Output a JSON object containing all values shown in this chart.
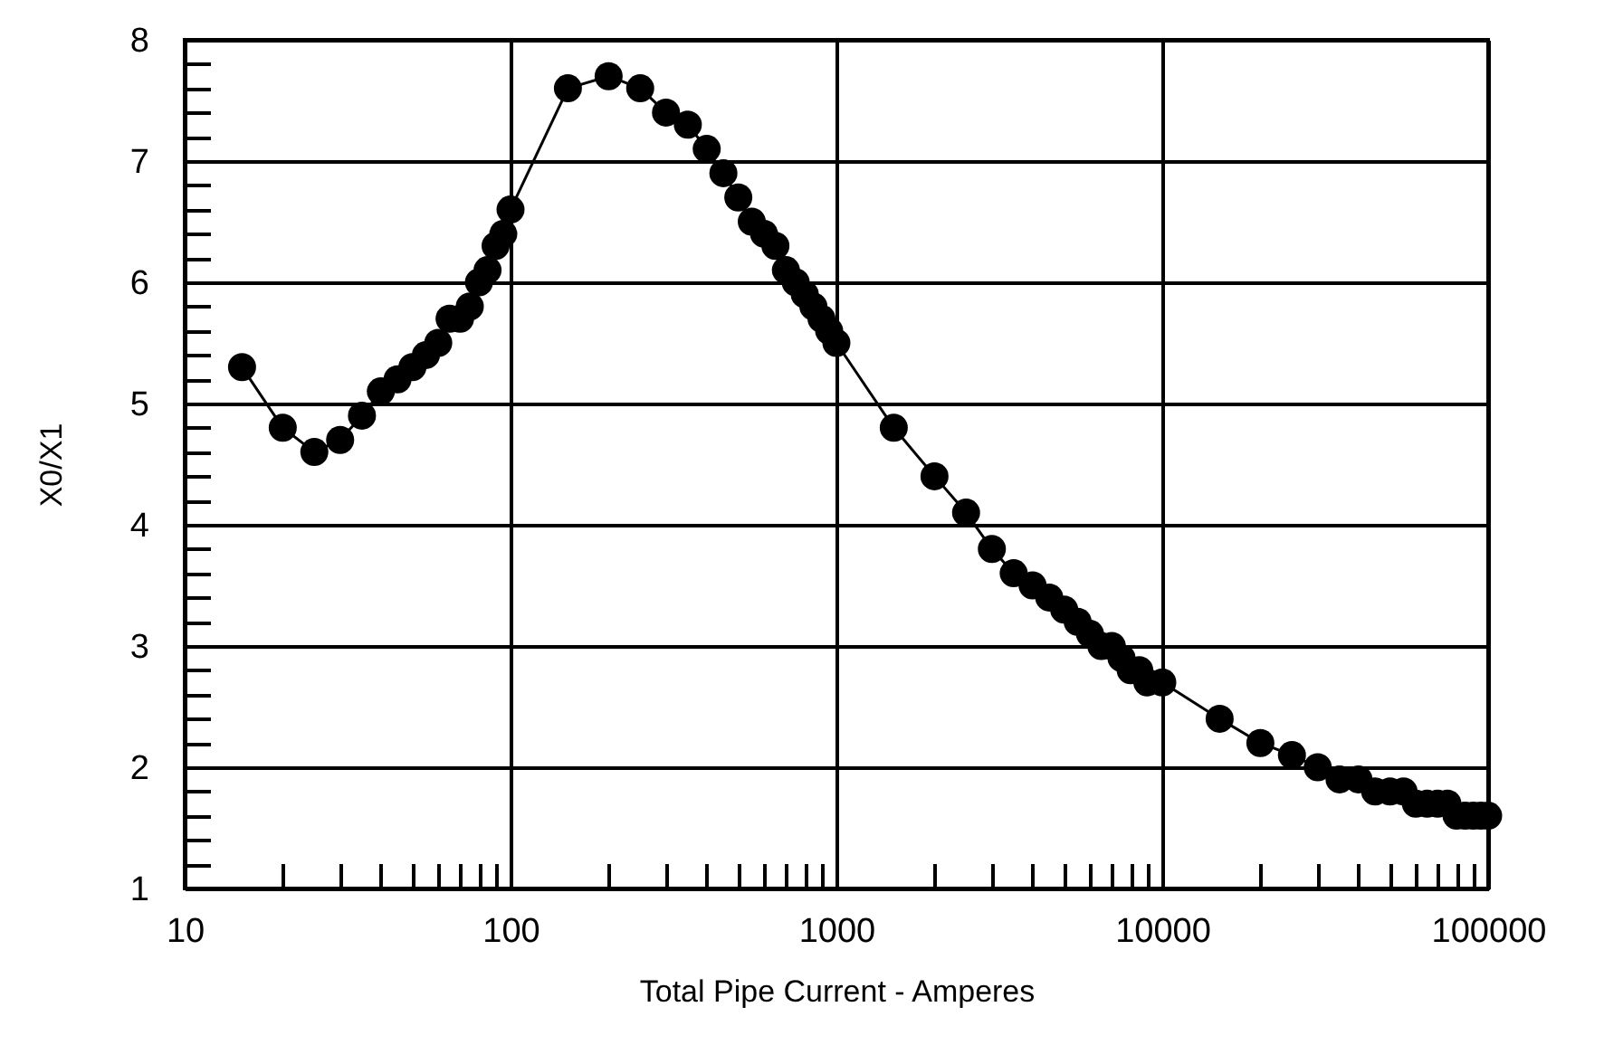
{
  "chart_data": {
    "type": "line",
    "xlabel": "Total Pipe Current - Amperes",
    "ylabel": "X0/X1",
    "log": "x",
    "grid": true,
    "marker": "circle",
    "line_style": "solid",
    "xlim": [
      10,
      100000
    ],
    "ylim": [
      1,
      8
    ],
    "xticks": [
      10,
      {
        "value": 20,
        "label": null
      },
      {
        "value": 30,
        "label": null
      },
      {
        "value": 40,
        "label": null
      },
      {
        "value": 50,
        "label": null
      },
      {
        "value": 60,
        "label": null
      },
      {
        "value": 70,
        "label": null
      },
      {
        "value": 80,
        "label": null
      },
      {
        "value": 90,
        "label": null
      },
      100,
      {
        "value": 200,
        "label": null
      },
      {
        "value": 300,
        "label": null
      },
      {
        "value": 400,
        "label": null
      },
      {
        "value": 500,
        "label": null
      },
      {
        "value": 600,
        "label": null
      },
      {
        "value": 700,
        "label": null
      },
      {
        "value": 800,
        "label": null
      },
      {
        "value": 900,
        "label": null
      },
      1000,
      {
        "value": 2000,
        "label": null
      },
      {
        "value": 3000,
        "label": null
      },
      {
        "value": 4000,
        "label": null
      },
      {
        "value": 5000,
        "label": null
      },
      {
        "value": 6000,
        "label": null
      },
      {
        "value": 7000,
        "label": null
      },
      {
        "value": 8000,
        "label": null
      },
      {
        "value": 9000,
        "label": null
      },
      10000,
      {
        "value": 20000,
        "label": null
      },
      {
        "value": 30000,
        "label": null
      },
      {
        "value": 40000,
        "label": null
      },
      {
        "value": 50000,
        "label": null
      },
      {
        "value": 60000,
        "label": null
      },
      {
        "value": 70000,
        "label": null
      },
      {
        "value": 80000,
        "label": null
      },
      {
        "value": 90000,
        "label": null
      },
      100000
    ],
    "yticks": [
      1,
      {
        "value": 1.2,
        "label": null
      },
      {
        "value": 1.4,
        "label": null
      },
      {
        "value": 1.6,
        "label": null
      },
      {
        "value": 1.8,
        "label": null
      },
      2,
      {
        "value": 2.2,
        "label": null
      },
      {
        "value": 2.4,
        "label": null
      },
      {
        "value": 2.6,
        "label": null
      },
      {
        "value": 2.8,
        "label": null
      },
      3,
      {
        "value": 3.2,
        "label": null
      },
      {
        "value": 3.4,
        "label": null
      },
      {
        "value": 3.6,
        "label": null
      },
      {
        "value": 3.8,
        "label": null
      },
      4,
      {
        "value": 4.2,
        "label": null
      },
      {
        "value": 4.4,
        "label": null
      },
      {
        "value": 4.6,
        "label": null
      },
      {
        "value": 4.8,
        "label": null
      },
      5,
      {
        "value": 5.2,
        "label": null
      },
      {
        "value": 5.4,
        "label": null
      },
      {
        "value": 5.6,
        "label": null
      },
      {
        "value": 5.8,
        "label": null
      },
      6,
      {
        "value": 6.2,
        "label": null
      },
      {
        "value": 6.4,
        "label": null
      },
      {
        "value": 6.6,
        "label": null
      },
      {
        "value": 6.8,
        "label": null
      },
      7,
      {
        "value": 7.2,
        "label": null
      },
      {
        "value": 7.4,
        "label": null
      },
      {
        "value": 7.6,
        "label": null
      },
      {
        "value": 7.8,
        "label": null
      },
      8
    ],
    "series": [
      {
        "color": "#000000",
        "x": [
          15,
          20,
          25,
          30,
          35,
          40,
          45,
          50,
          55,
          60,
          65,
          70,
          75,
          80,
          85,
          90,
          95,
          100,
          150,
          200,
          250,
          300,
          350,
          400,
          450,
          500,
          550,
          600,
          650,
          700,
          750,
          800,
          850,
          900,
          950,
          1000,
          1500,
          2000,
          2500,
          3000,
          3500,
          4000,
          4500,
          5000,
          5500,
          6000,
          6500,
          7000,
          7500,
          8000,
          8500,
          9000,
          10000,
          15000,
          20000,
          25000,
          30000,
          35000,
          40000,
          45000,
          50000,
          55000,
          60000,
          65000,
          70000,
          75000,
          80000,
          85000,
          90000,
          95000,
          100000
        ],
        "values": [
          5.3,
          4.8,
          4.6,
          4.7,
          4.9,
          5.1,
          5.2,
          5.3,
          5.4,
          5.5,
          5.7,
          5.7,
          5.8,
          6.0,
          6.1,
          6.3,
          6.4,
          6.6,
          7.6,
          7.7,
          7.6,
          7.4,
          7.3,
          7.1,
          6.9,
          6.7,
          6.5,
          6.4,
          6.3,
          6.1,
          6.0,
          5.9,
          5.8,
          5.7,
          5.6,
          5.5,
          4.8,
          4.4,
          4.1,
          3.8,
          3.6,
          3.5,
          3.4,
          3.3,
          3.2,
          3.1,
          3.0,
          3.0,
          2.9,
          2.8,
          2.8,
          2.7,
          2.7,
          2.4,
          2.2,
          2.1,
          2.0,
          1.9,
          1.9,
          1.8,
          1.8,
          1.8,
          1.7,
          1.7,
          1.7,
          1.7,
          1.6,
          1.6,
          1.6,
          1.6,
          1.6
        ]
      }
    ]
  }
}
